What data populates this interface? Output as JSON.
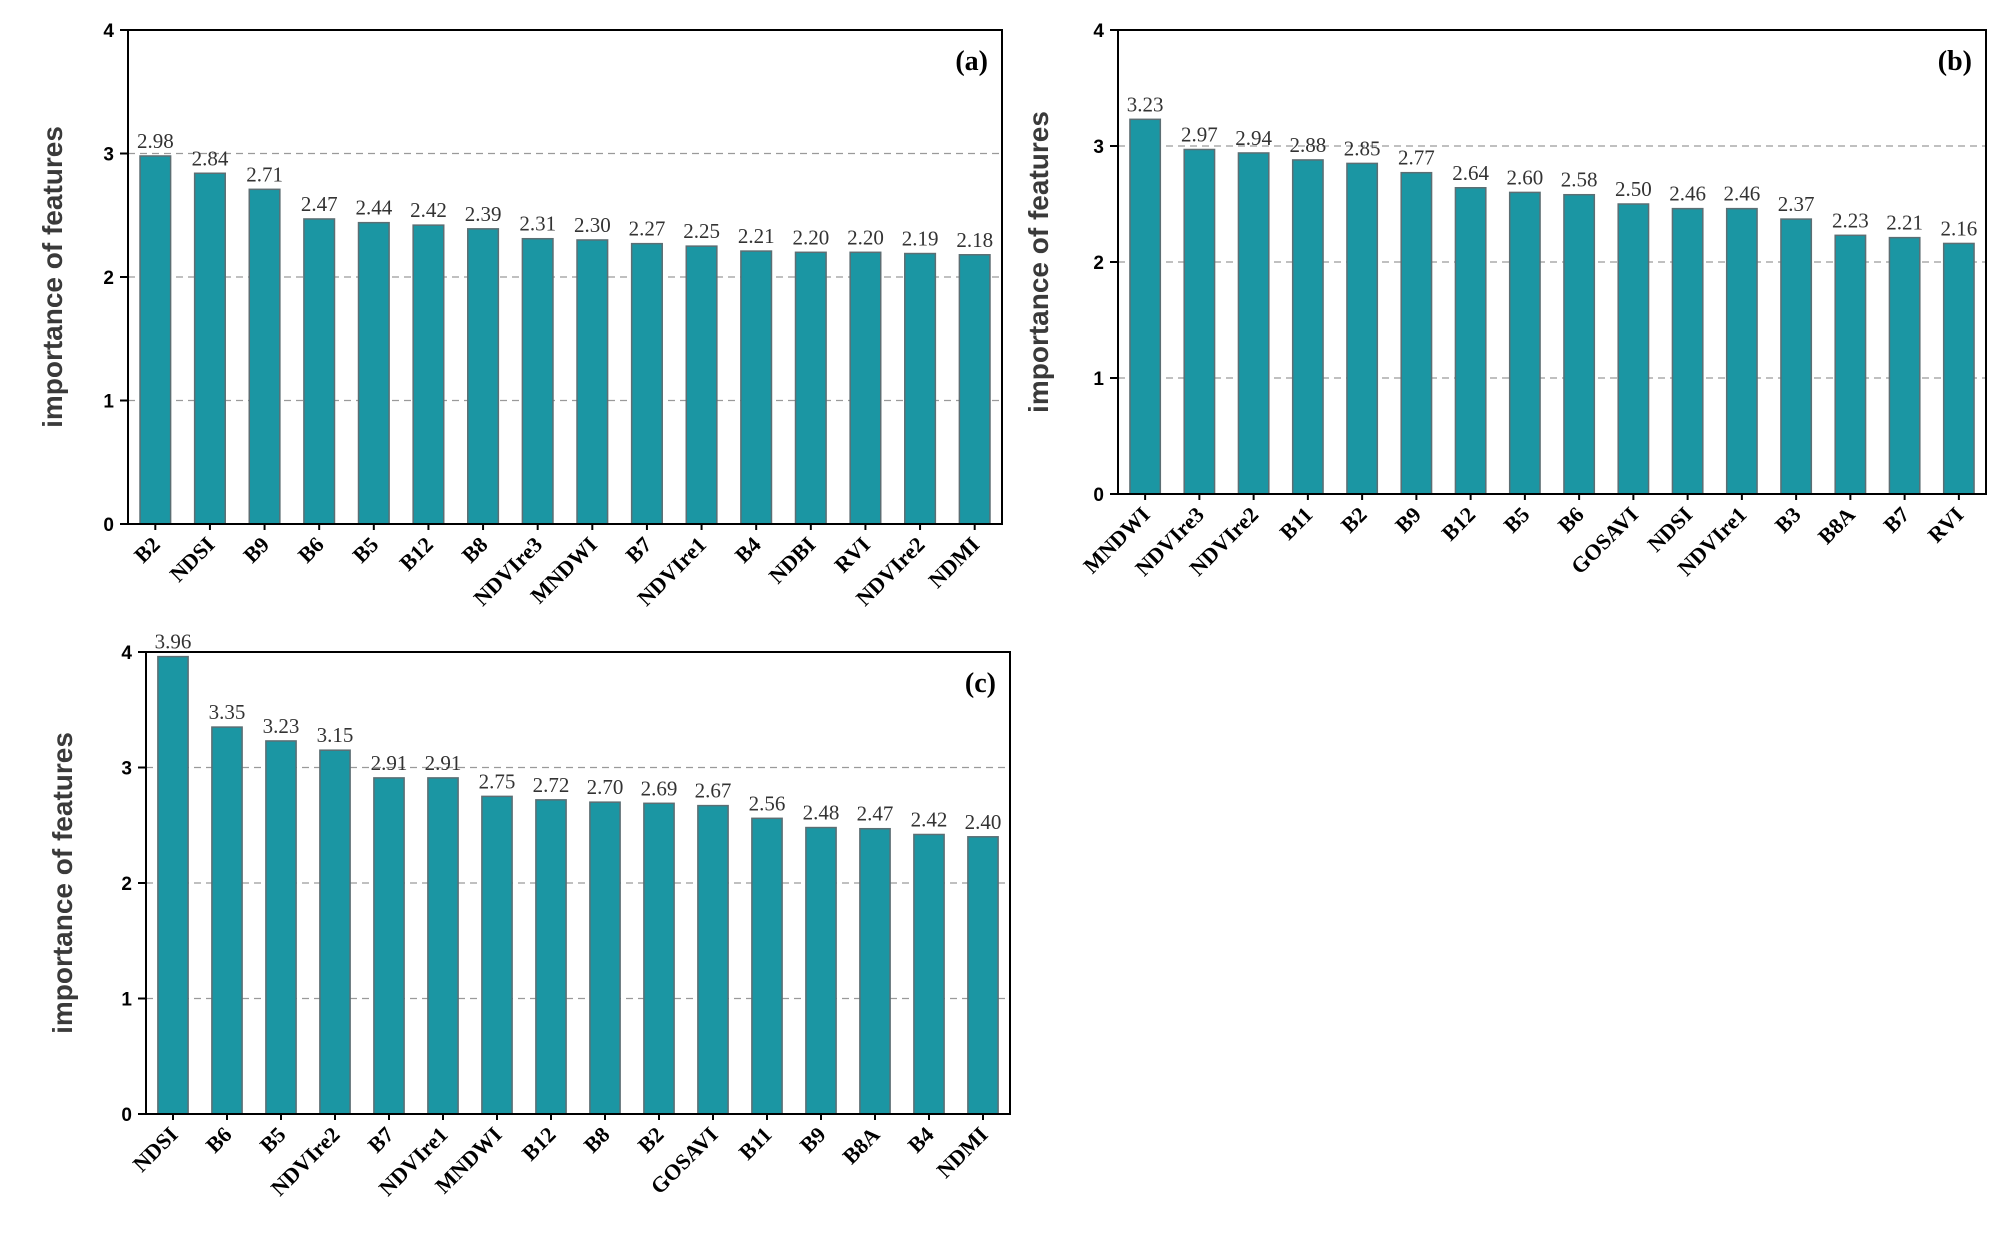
{
  "chart_data": [
    {
      "type": "bar",
      "panel_label": "(a)",
      "ylabel": "importance of features",
      "ylim": [
        0,
        4
      ],
      "yticks": [
        "0",
        "1",
        "2",
        "3",
        "4"
      ],
      "grid": "dashed horizontal",
      "categories": [
        "B2",
        "NDSI",
        "B9",
        "B6",
        "B5",
        "B12",
        "B8",
        "NDVIre3",
        "MNDWI",
        "B7",
        "NDVIre1",
        "B4",
        "NDBI",
        "RVI",
        "NDVIre2",
        "NDMI"
      ],
      "values": [
        2.98,
        2.84,
        2.71,
        2.47,
        2.44,
        2.42,
        2.39,
        2.31,
        2.3,
        2.27,
        2.25,
        2.21,
        2.2,
        2.2,
        2.19,
        2.18
      ],
      "value_labels": [
        "2.98",
        "2.84",
        "2.71",
        "2.47",
        "2.44",
        "2.42",
        "2.39",
        "2.31",
        "2.30",
        "2.27",
        "2.25",
        "2.21",
        "2.20",
        "2.20",
        "2.19",
        "2.18"
      ]
    },
    {
      "type": "bar",
      "panel_label": "(b)",
      "ylabel": "importance of features",
      "ylim": [
        0,
        4
      ],
      "yticks": [
        "0",
        "1",
        "2",
        "3",
        "4"
      ],
      "grid": "dashed horizontal",
      "categories": [
        "MNDWI",
        "NDVIre3",
        "NDVIre2",
        "B11",
        "B2",
        "B9",
        "B12",
        "B5",
        "B6",
        "GOSAVI",
        "NDSI",
        "NDVIre1",
        "B3",
        "B8A",
        "B7",
        "RVI"
      ],
      "values": [
        3.23,
        2.97,
        2.94,
        2.88,
        2.85,
        2.77,
        2.64,
        2.6,
        2.58,
        2.5,
        2.46,
        2.46,
        2.37,
        2.23,
        2.21,
        2.16
      ],
      "value_labels": [
        "3.23",
        "2.97",
        "2.94",
        "2.88",
        "2.85",
        "2.77",
        "2.64",
        "2.60",
        "2.58",
        "2.50",
        "2.46",
        "2.46",
        "2.37",
        "2.23",
        "2.21",
        "2.16"
      ]
    },
    {
      "type": "bar",
      "panel_label": "(c)",
      "ylabel": "importance of features",
      "ylim": [
        0,
        4
      ],
      "yticks": [
        "0",
        "1",
        "2",
        "3",
        "4"
      ],
      "grid": "dashed horizontal",
      "categories": [
        "NDSI",
        "B6",
        "B5",
        "NDVIre2",
        "B7",
        "NDVIre1",
        "MNDWI",
        "B12",
        "B8",
        "B2",
        "GOSAVI",
        "B11",
        "B9",
        "B8A",
        "B4",
        "NDMI"
      ],
      "values": [
        3.96,
        3.35,
        3.23,
        3.15,
        2.91,
        2.91,
        2.75,
        2.72,
        2.7,
        2.69,
        2.67,
        2.56,
        2.48,
        2.47,
        2.42,
        2.4
      ],
      "value_labels": [
        "3.96",
        "3.35",
        "3.23",
        "3.15",
        "2.91",
        "2.91",
        "2.75",
        "2.72",
        "2.70",
        "2.69",
        "2.67",
        "2.56",
        "2.48",
        "2.47",
        "2.42",
        "2.40"
      ]
    }
  ]
}
